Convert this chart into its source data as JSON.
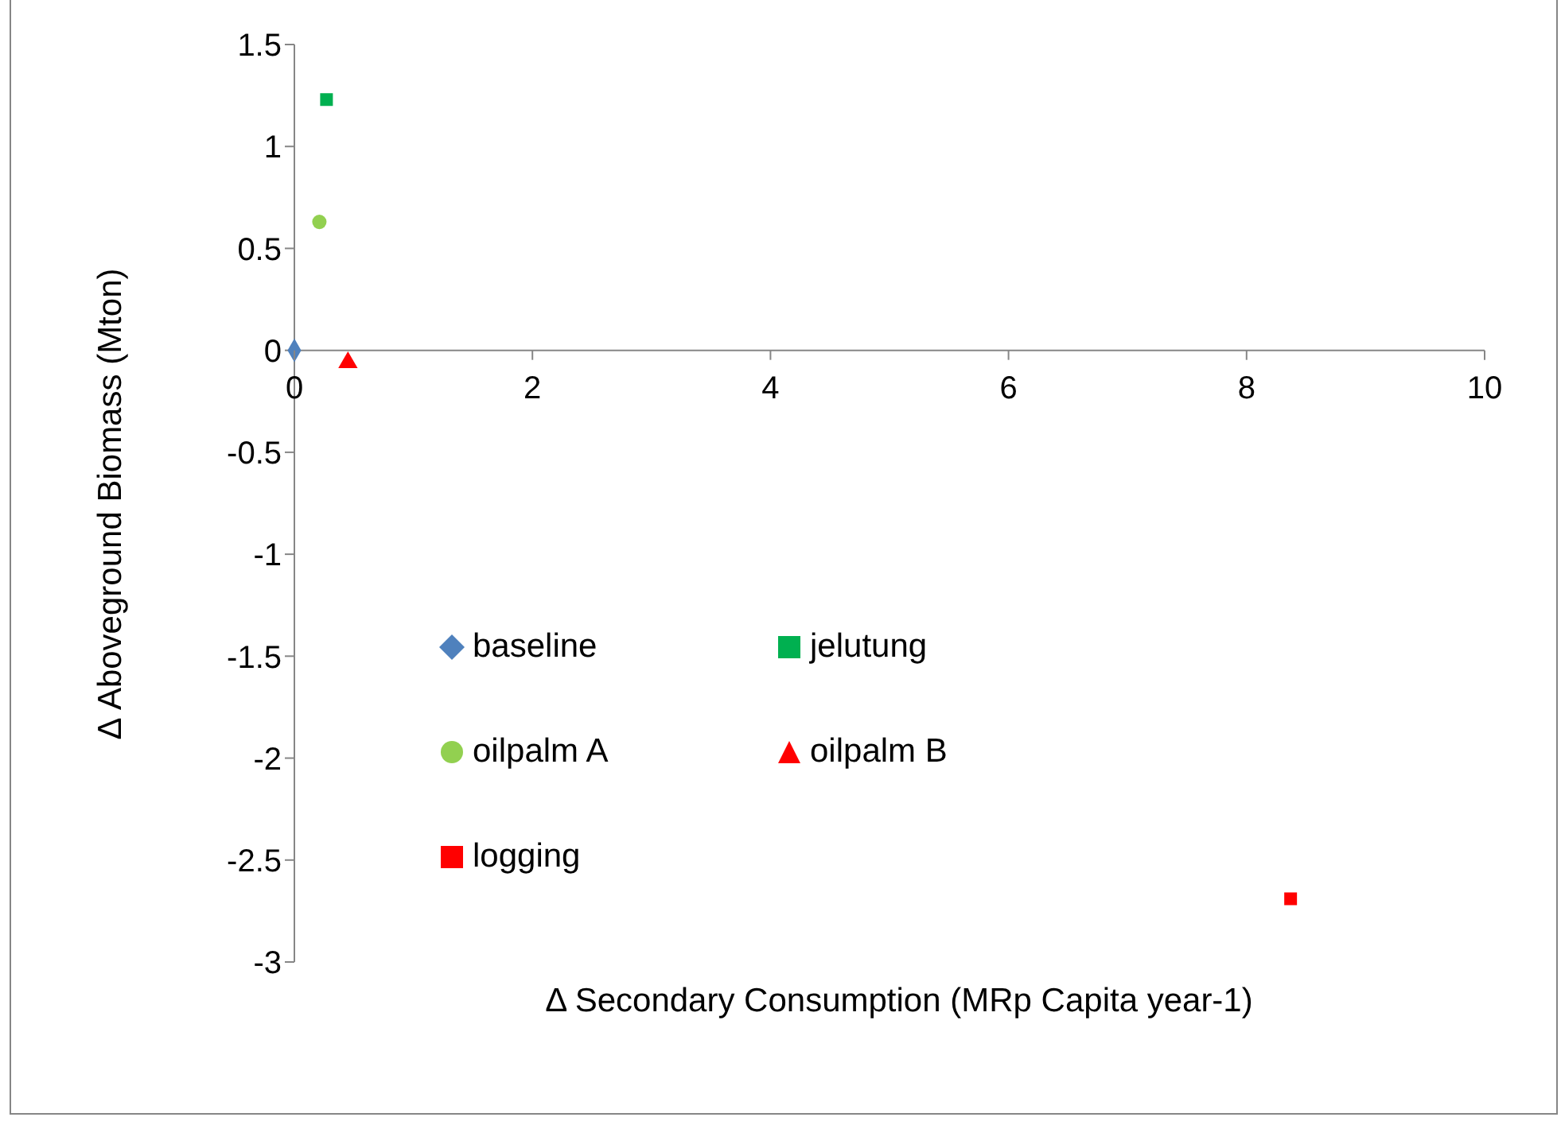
{
  "chart_data": {
    "type": "scatter",
    "xlabel": "Δ Secondary Consumption (MRp Capita year-1)",
    "ylabel": "Δ Aboveground Biomass (Mton)",
    "xlim": [
      0,
      10
    ],
    "xticks": [
      0,
      2,
      4,
      6,
      8,
      10
    ],
    "ylim": [
      -3,
      1.5
    ],
    "yticks": [
      -3,
      -2.5,
      -2,
      -1.5,
      -1,
      -0.5,
      0,
      0.5,
      1,
      1.5
    ],
    "grid": false,
    "legend": "left",
    "series": [
      {
        "name": "baseline",
        "color": "#4f81bd",
        "marker": "diamond",
        "x": [
          0
        ],
        "values": [
          0
        ]
      },
      {
        "name": "jelutung",
        "color": "#00b050",
        "marker": "square",
        "x": [
          0.27
        ],
        "values": [
          1.23
        ]
      },
      {
        "name": "oilpalm A",
        "color": "#92d050",
        "marker": "circle",
        "x": [
          0.21
        ],
        "values": [
          0.63
        ]
      },
      {
        "name": "oilpalm B",
        "color": "#ff0000",
        "marker": "triangle",
        "x": [
          0.45
        ],
        "values": [
          -0.06
        ]
      },
      {
        "name": "logging",
        "color": "#ff0000",
        "marker": "square",
        "x": [
          8.37
        ],
        "values": [
          -2.69
        ]
      }
    ]
  }
}
